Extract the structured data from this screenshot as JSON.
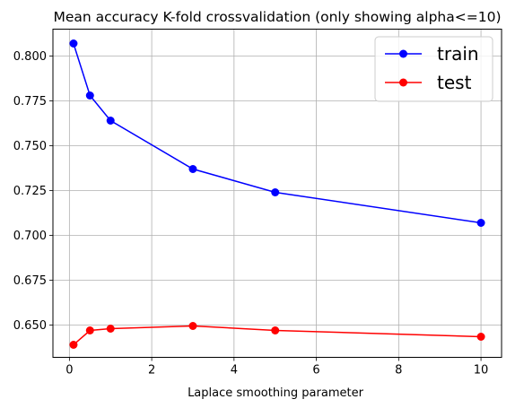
{
  "chart_data": {
    "type": "line",
    "title": "Mean accuracy K-fold crossvalidation (only showing alpha<=10)",
    "xlabel": "Laplace smoothing parameter",
    "ylabel": "",
    "xlim": [
      -0.4,
      10.5
    ],
    "ylim": [
      0.632,
      0.815
    ],
    "x_ticks": [
      0,
      2,
      4,
      6,
      8,
      10
    ],
    "y_ticks": [
      0.65,
      0.675,
      0.7,
      0.725,
      0.75,
      0.775,
      0.8
    ],
    "x_tick_labels": [
      "0",
      "2",
      "4",
      "6",
      "8",
      "10"
    ],
    "y_tick_labels": [
      "0.650",
      "0.675",
      "0.700",
      "0.725",
      "0.750",
      "0.775",
      "0.800"
    ],
    "grid": true,
    "legend_position": "top-right",
    "x": [
      0.1,
      0.5,
      1,
      3,
      5,
      10
    ],
    "series": [
      {
        "name": "train",
        "color": "#0000ff",
        "values": [
          0.807,
          0.778,
          0.764,
          0.737,
          0.724,
          0.707
        ]
      },
      {
        "name": "test",
        "color": "#ff0000",
        "values": [
          0.639,
          0.647,
          0.648,
          0.6495,
          0.647,
          0.6435
        ]
      }
    ]
  }
}
